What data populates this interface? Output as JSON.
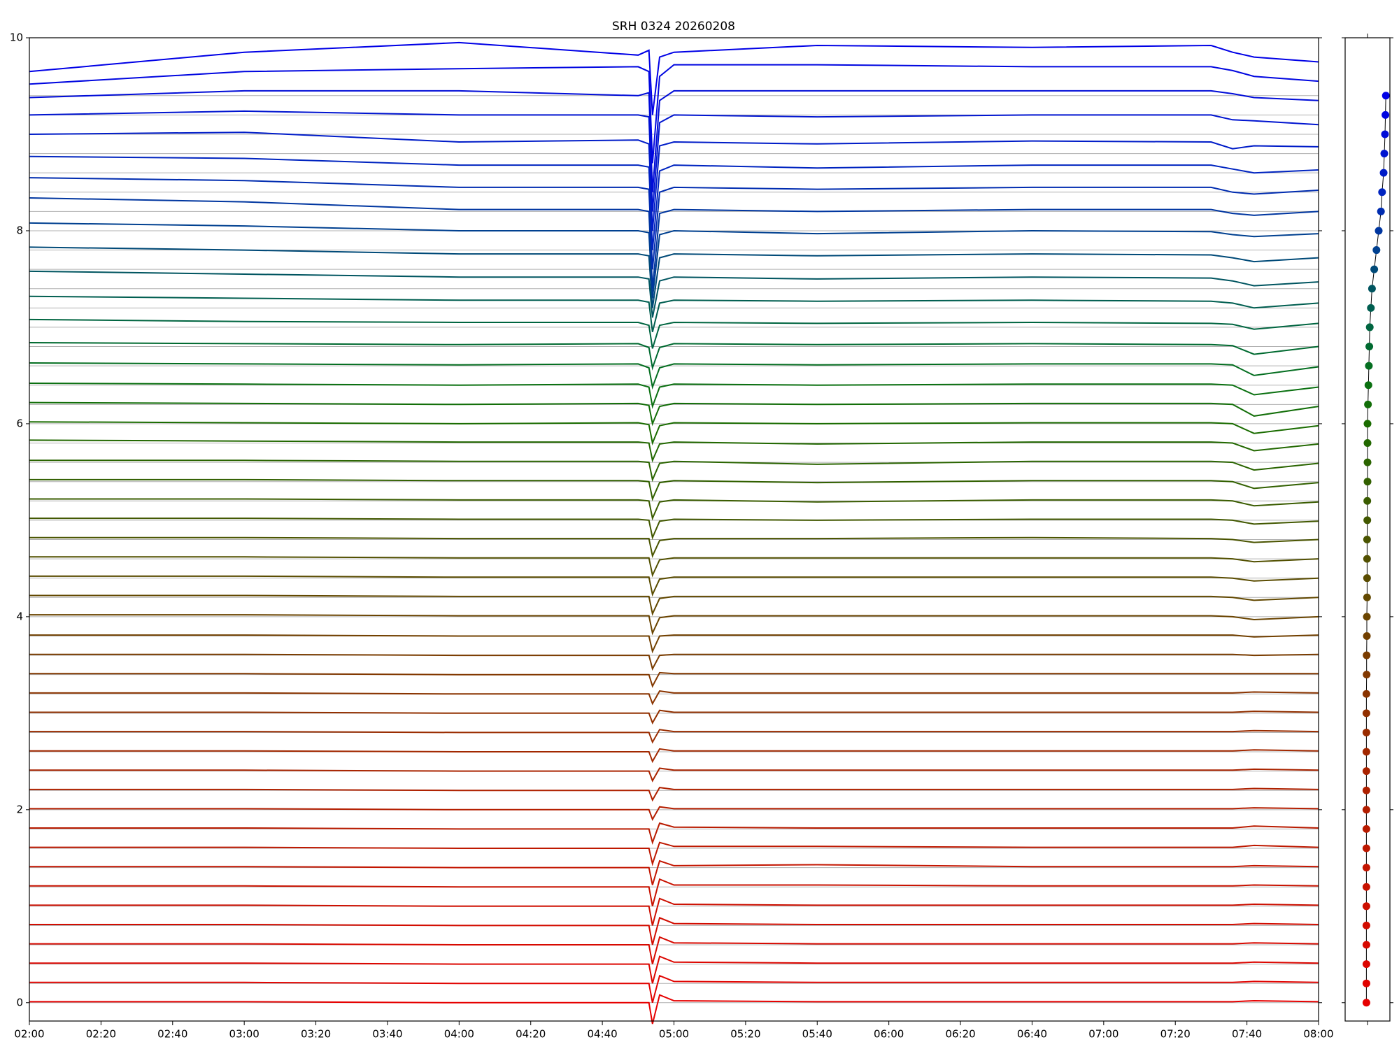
{
  "chart_data": {
    "type": "line",
    "title": "SRH 0324 20260208",
    "x": [
      "02:00",
      "03:00",
      "04:00",
      "04:50",
      "04:53",
      "04:54",
      "04:56",
      "05:00",
      "05:40",
      "06:40",
      "07:30",
      "07:36",
      "07:42",
      "08:00"
    ],
    "xlim": [
      "02:00",
      "08:00"
    ],
    "xticks": [
      "02:00",
      "02:20",
      "02:40",
      "03:00",
      "03:20",
      "03:40",
      "04:00",
      "04:20",
      "04:40",
      "05:00",
      "05:20",
      "05:40",
      "06:00",
      "06:20",
      "06:40",
      "07:00",
      "07:20",
      "07:40",
      "08:00"
    ],
    "ylim": [
      -0.19,
      10
    ],
    "yticks": [
      0,
      2,
      4,
      6,
      8,
      10
    ],
    "grid": true,
    "series": [
      {
        "color": "#e60000",
        "values": [
          0.01,
          0.01,
          0,
          0,
          0,
          -0.22,
          0.08,
          0.02,
          0.01,
          0.01,
          0.01,
          0.01,
          0.02,
          0.01
        ]
      },
      {
        "color": "#e10300",
        "values": [
          0.21,
          0.21,
          0.2,
          0.2,
          0.2,
          0,
          0.28,
          0.22,
          0.21,
          0.21,
          0.21,
          0.21,
          0.22,
          0.21
        ]
      },
      {
        "color": "#dc0600",
        "values": [
          0.41,
          0.41,
          0.4,
          0.4,
          0.4,
          0.2,
          0.48,
          0.42,
          0.41,
          0.41,
          0.41,
          0.41,
          0.42,
          0.41
        ]
      },
      {
        "color": "#d70900",
        "values": [
          0.61,
          0.61,
          0.6,
          0.6,
          0.6,
          0.4,
          0.68,
          0.62,
          0.61,
          0.61,
          0.61,
          0.61,
          0.62,
          0.61
        ]
      },
      {
        "color": "#d20c00",
        "values": [
          0.81,
          0.81,
          0.8,
          0.8,
          0.8,
          0.6,
          0.88,
          0.82,
          0.81,
          0.81,
          0.81,
          0.81,
          0.82,
          0.81
        ]
      },
      {
        "color": "#cd0f00",
        "values": [
          1.01,
          1.01,
          1.0,
          1.0,
          1.0,
          0.8,
          1.08,
          1.02,
          1.01,
          1.01,
          1.01,
          1.01,
          1.02,
          1.01
        ]
      },
      {
        "color": "#c81200",
        "values": [
          1.21,
          1.21,
          1.2,
          1.2,
          1.2,
          1.0,
          1.28,
          1.22,
          1.22,
          1.21,
          1.21,
          1.21,
          1.22,
          1.21
        ]
      },
      {
        "color": "#c31500",
        "values": [
          1.41,
          1.41,
          1.4,
          1.4,
          1.4,
          1.22,
          1.47,
          1.42,
          1.43,
          1.41,
          1.41,
          1.41,
          1.42,
          1.41
        ]
      },
      {
        "color": "#be1800",
        "values": [
          1.61,
          1.61,
          1.6,
          1.6,
          1.6,
          1.44,
          1.66,
          1.62,
          1.62,
          1.61,
          1.61,
          1.61,
          1.63,
          1.61
        ]
      },
      {
        "color": "#b91b00",
        "values": [
          1.81,
          1.81,
          1.8,
          1.8,
          1.8,
          1.66,
          1.86,
          1.82,
          1.81,
          1.81,
          1.81,
          1.81,
          1.83,
          1.81
        ]
      },
      {
        "color": "#b41e00",
        "values": [
          2.01,
          2.01,
          2.0,
          2.0,
          2.0,
          1.9,
          2.03,
          2.01,
          2.01,
          2.01,
          2.01,
          2.01,
          2.02,
          2.01
        ]
      },
      {
        "color": "#af2100",
        "values": [
          2.21,
          2.21,
          2.2,
          2.2,
          2.2,
          2.1,
          2.23,
          2.21,
          2.21,
          2.21,
          2.21,
          2.21,
          2.22,
          2.21
        ]
      },
      {
        "color": "#aa2400",
        "values": [
          2.41,
          2.41,
          2.4,
          2.4,
          2.4,
          2.3,
          2.43,
          2.41,
          2.41,
          2.41,
          2.41,
          2.41,
          2.42,
          2.41
        ]
      },
      {
        "color": "#a22800",
        "values": [
          2.61,
          2.61,
          2.6,
          2.6,
          2.6,
          2.5,
          2.63,
          2.61,
          2.61,
          2.61,
          2.61,
          2.61,
          2.62,
          2.61
        ]
      },
      {
        "color": "#9a2c00",
        "values": [
          2.81,
          2.81,
          2.8,
          2.8,
          2.8,
          2.7,
          2.83,
          2.81,
          2.81,
          2.81,
          2.81,
          2.81,
          2.82,
          2.81
        ]
      },
      {
        "color": "#923000",
        "values": [
          3.01,
          3.01,
          3.0,
          3.0,
          3.0,
          2.9,
          3.03,
          3.01,
          3.01,
          3.01,
          3.01,
          3.01,
          3.02,
          3.01
        ]
      },
      {
        "color": "#8a3400",
        "values": [
          3.21,
          3.21,
          3.2,
          3.2,
          3.2,
          3.1,
          3.23,
          3.21,
          3.21,
          3.21,
          3.21,
          3.21,
          3.22,
          3.21
        ]
      },
      {
        "color": "#823800",
        "values": [
          3.41,
          3.41,
          3.4,
          3.4,
          3.4,
          3.28,
          3.42,
          3.41,
          3.41,
          3.41,
          3.41,
          3.41,
          3.41,
          3.41
        ]
      },
      {
        "color": "#7a3c00",
        "values": [
          3.61,
          3.61,
          3.6,
          3.6,
          3.6,
          3.46,
          3.6,
          3.61,
          3.61,
          3.61,
          3.61,
          3.61,
          3.6,
          3.61
        ]
      },
      {
        "color": "#724000",
        "values": [
          3.81,
          3.81,
          3.8,
          3.8,
          3.8,
          3.64,
          3.8,
          3.81,
          3.81,
          3.81,
          3.81,
          3.81,
          3.79,
          3.81
        ]
      },
      {
        "color": "#6a4400",
        "values": [
          4.02,
          4.02,
          4.01,
          4.01,
          4.01,
          3.83,
          3.99,
          4.01,
          4.01,
          4.01,
          4.01,
          4.0,
          3.97,
          4.0
        ]
      },
      {
        "color": "#624800",
        "values": [
          4.22,
          4.22,
          4.21,
          4.21,
          4.21,
          4.03,
          4.19,
          4.21,
          4.21,
          4.21,
          4.21,
          4.2,
          4.17,
          4.2
        ]
      },
      {
        "color": "#5a4c00",
        "values": [
          4.42,
          4.42,
          4.41,
          4.41,
          4.41,
          4.23,
          4.39,
          4.41,
          4.41,
          4.41,
          4.41,
          4.4,
          4.37,
          4.4
        ]
      },
      {
        "color": "#525000",
        "values": [
          4.62,
          4.62,
          4.61,
          4.61,
          4.61,
          4.43,
          4.59,
          4.61,
          4.61,
          4.61,
          4.61,
          4.6,
          4.57,
          4.6
        ]
      },
      {
        "color": "#4a5400",
        "values": [
          4.82,
          4.82,
          4.81,
          4.81,
          4.81,
          4.63,
          4.79,
          4.81,
          4.81,
          4.82,
          4.81,
          4.8,
          4.77,
          4.8
        ]
      },
      {
        "color": "#425800",
        "values": [
          5.02,
          5.02,
          5.01,
          5.01,
          5.0,
          4.82,
          4.99,
          5.01,
          5.0,
          5.01,
          5.01,
          5.0,
          4.96,
          4.99
        ]
      },
      {
        "color": "#3a5c00",
        "values": [
          5.22,
          5.22,
          5.21,
          5.21,
          5.2,
          5.02,
          5.19,
          5.21,
          5.19,
          5.21,
          5.21,
          5.2,
          5.15,
          5.19
        ]
      },
      {
        "color": "#326000",
        "values": [
          5.42,
          5.42,
          5.41,
          5.41,
          5.4,
          5.22,
          5.39,
          5.41,
          5.39,
          5.41,
          5.41,
          5.4,
          5.33,
          5.39
        ]
      },
      {
        "color": "#2a6400",
        "values": [
          5.62,
          5.62,
          5.61,
          5.61,
          5.6,
          5.42,
          5.59,
          5.61,
          5.58,
          5.61,
          5.61,
          5.6,
          5.52,
          5.59
        ]
      },
      {
        "color": "#226800",
        "values": [
          5.83,
          5.82,
          5.81,
          5.81,
          5.8,
          5.62,
          5.79,
          5.81,
          5.79,
          5.81,
          5.81,
          5.8,
          5.72,
          5.79
        ]
      },
      {
        "color": "#1a6c00",
        "values": [
          6.02,
          6.01,
          6.0,
          6.01,
          5.99,
          5.8,
          5.98,
          6.01,
          6.0,
          6.01,
          6.01,
          6.0,
          5.9,
          5.98
        ]
      },
      {
        "color": "#126e08",
        "values": [
          6.22,
          6.21,
          6.2,
          6.21,
          6.19,
          6.0,
          6.18,
          6.21,
          6.2,
          6.21,
          6.21,
          6.2,
          6.08,
          6.18
        ]
      },
      {
        "color": "#0a7010",
        "values": [
          6.42,
          6.41,
          6.4,
          6.41,
          6.38,
          6.18,
          6.38,
          6.41,
          6.4,
          6.41,
          6.41,
          6.4,
          6.3,
          6.38
        ]
      },
      {
        "color": "#046e20",
        "values": [
          6.63,
          6.62,
          6.61,
          6.62,
          6.58,
          6.38,
          6.58,
          6.62,
          6.61,
          6.62,
          6.62,
          6.61,
          6.5,
          6.59
        ]
      },
      {
        "color": "#006a30",
        "values": [
          6.84,
          6.83,
          6.82,
          6.83,
          6.79,
          6.58,
          6.79,
          6.83,
          6.82,
          6.83,
          6.82,
          6.81,
          6.72,
          6.8
        ]
      },
      {
        "color": "#006540",
        "values": [
          7.08,
          7.06,
          7.05,
          7.05,
          7.02,
          6.78,
          7.02,
          7.05,
          7.04,
          7.05,
          7.04,
          7.03,
          6.98,
          7.04
        ]
      },
      {
        "color": "#005e50",
        "values": [
          7.32,
          7.3,
          7.28,
          7.28,
          7.26,
          6.95,
          7.25,
          7.28,
          7.27,
          7.28,
          7.27,
          7.25,
          7.2,
          7.25
        ]
      },
      {
        "color": "#005560",
        "values": [
          7.58,
          7.55,
          7.52,
          7.52,
          7.5,
          7.1,
          7.48,
          7.52,
          7.5,
          7.52,
          7.51,
          7.48,
          7.43,
          7.47
        ]
      },
      {
        "color": "#004a78",
        "values": [
          7.83,
          7.8,
          7.76,
          7.76,
          7.74,
          7.2,
          7.72,
          7.76,
          7.74,
          7.76,
          7.75,
          7.72,
          7.68,
          7.72
        ]
      },
      {
        "color": "#004090",
        "values": [
          8.08,
          8.05,
          8.0,
          8.0,
          7.98,
          7.3,
          7.96,
          8.0,
          7.97,
          8.0,
          7.99,
          7.96,
          7.94,
          7.97
        ]
      },
      {
        "color": "#0036a0",
        "values": [
          8.34,
          8.3,
          8.22,
          8.22,
          8.2,
          7.4,
          8.18,
          8.22,
          8.2,
          8.22,
          8.22,
          8.18,
          8.16,
          8.2
        ]
      },
      {
        "color": "#002cb0",
        "values": [
          8.55,
          8.52,
          8.45,
          8.45,
          8.43,
          7.6,
          8.4,
          8.45,
          8.43,
          8.45,
          8.45,
          8.4,
          8.38,
          8.42
        ]
      },
      {
        "color": "#0024c0",
        "values": [
          8.77,
          8.75,
          8.68,
          8.68,
          8.66,
          7.8,
          8.62,
          8.68,
          8.65,
          8.68,
          8.68,
          8.64,
          8.6,
          8.63
        ]
      },
      {
        "color": "#001cc8",
        "values": [
          9.0,
          9.02,
          8.92,
          8.94,
          8.9,
          8.0,
          8.88,
          8.92,
          8.9,
          8.93,
          8.92,
          8.85,
          8.88,
          8.87
        ]
      },
      {
        "color": "#0014d0",
        "values": [
          9.2,
          9.24,
          9.2,
          9.2,
          9.18,
          8.2,
          9.12,
          9.2,
          9.18,
          9.2,
          9.2,
          9.15,
          9.14,
          9.1
        ]
      },
      {
        "color": "#000cd8",
        "values": [
          9.38,
          9.45,
          9.45,
          9.4,
          9.43,
          8.4,
          9.35,
          9.45,
          9.45,
          9.45,
          9.45,
          9.42,
          9.38,
          9.35
        ]
      },
      {
        "color": "#0006e0",
        "values": [
          9.52,
          9.65,
          9.68,
          9.7,
          9.65,
          8.7,
          9.6,
          9.72,
          9.72,
          9.7,
          9.7,
          9.66,
          9.6,
          9.55
        ]
      },
      {
        "color": "#0000e6",
        "values": [
          9.65,
          9.85,
          9.95,
          9.82,
          9.87,
          9.2,
          9.8,
          9.85,
          9.92,
          9.9,
          9.92,
          9.85,
          9.8,
          9.75
        ]
      }
    ],
    "side_panel": {
      "type": "scatter",
      "xlim": [
        -1,
        1
      ],
      "xticks": [
        0
      ],
      "x": [
        -0.05,
        -0.05,
        -0.05,
        -0.05,
        -0.05,
        -0.05,
        -0.05,
        -0.05,
        -0.05,
        -0.05,
        -0.05,
        -0.05,
        -0.05,
        -0.05,
        -0.05,
        -0.05,
        -0.05,
        -0.04,
        -0.04,
        -0.03,
        -0.03,
        -0.02,
        -0.02,
        -0.02,
        -0.02,
        -0.01,
        -0.01,
        0,
        0,
        0,
        0,
        0.02,
        0.04,
        0.06,
        0.08,
        0.1,
        0.15,
        0.2,
        0.3,
        0.4,
        0.5,
        0.6,
        0.65,
        0.72,
        0.75,
        0.78,
        0.8,
        0.82
      ],
      "y": [
        0,
        0.2,
        0.4,
        0.6,
        0.8,
        1.0,
        1.2,
        1.4,
        1.6,
        1.8,
        2.0,
        2.2,
        2.4,
        2.6,
        2.8,
        3.0,
        3.2,
        3.4,
        3.6,
        3.8,
        4.0,
        4.2,
        4.4,
        4.6,
        4.8,
        5.0,
        5.2,
        5.4,
        5.6,
        5.8,
        6.0,
        6.2,
        6.4,
        6.6,
        6.8,
        7.0,
        7.2,
        7.4,
        7.6,
        7.8,
        8.0,
        8.2,
        8.4,
        8.6,
        8.8,
        9.0,
        9.2,
        9.4
      ]
    }
  }
}
